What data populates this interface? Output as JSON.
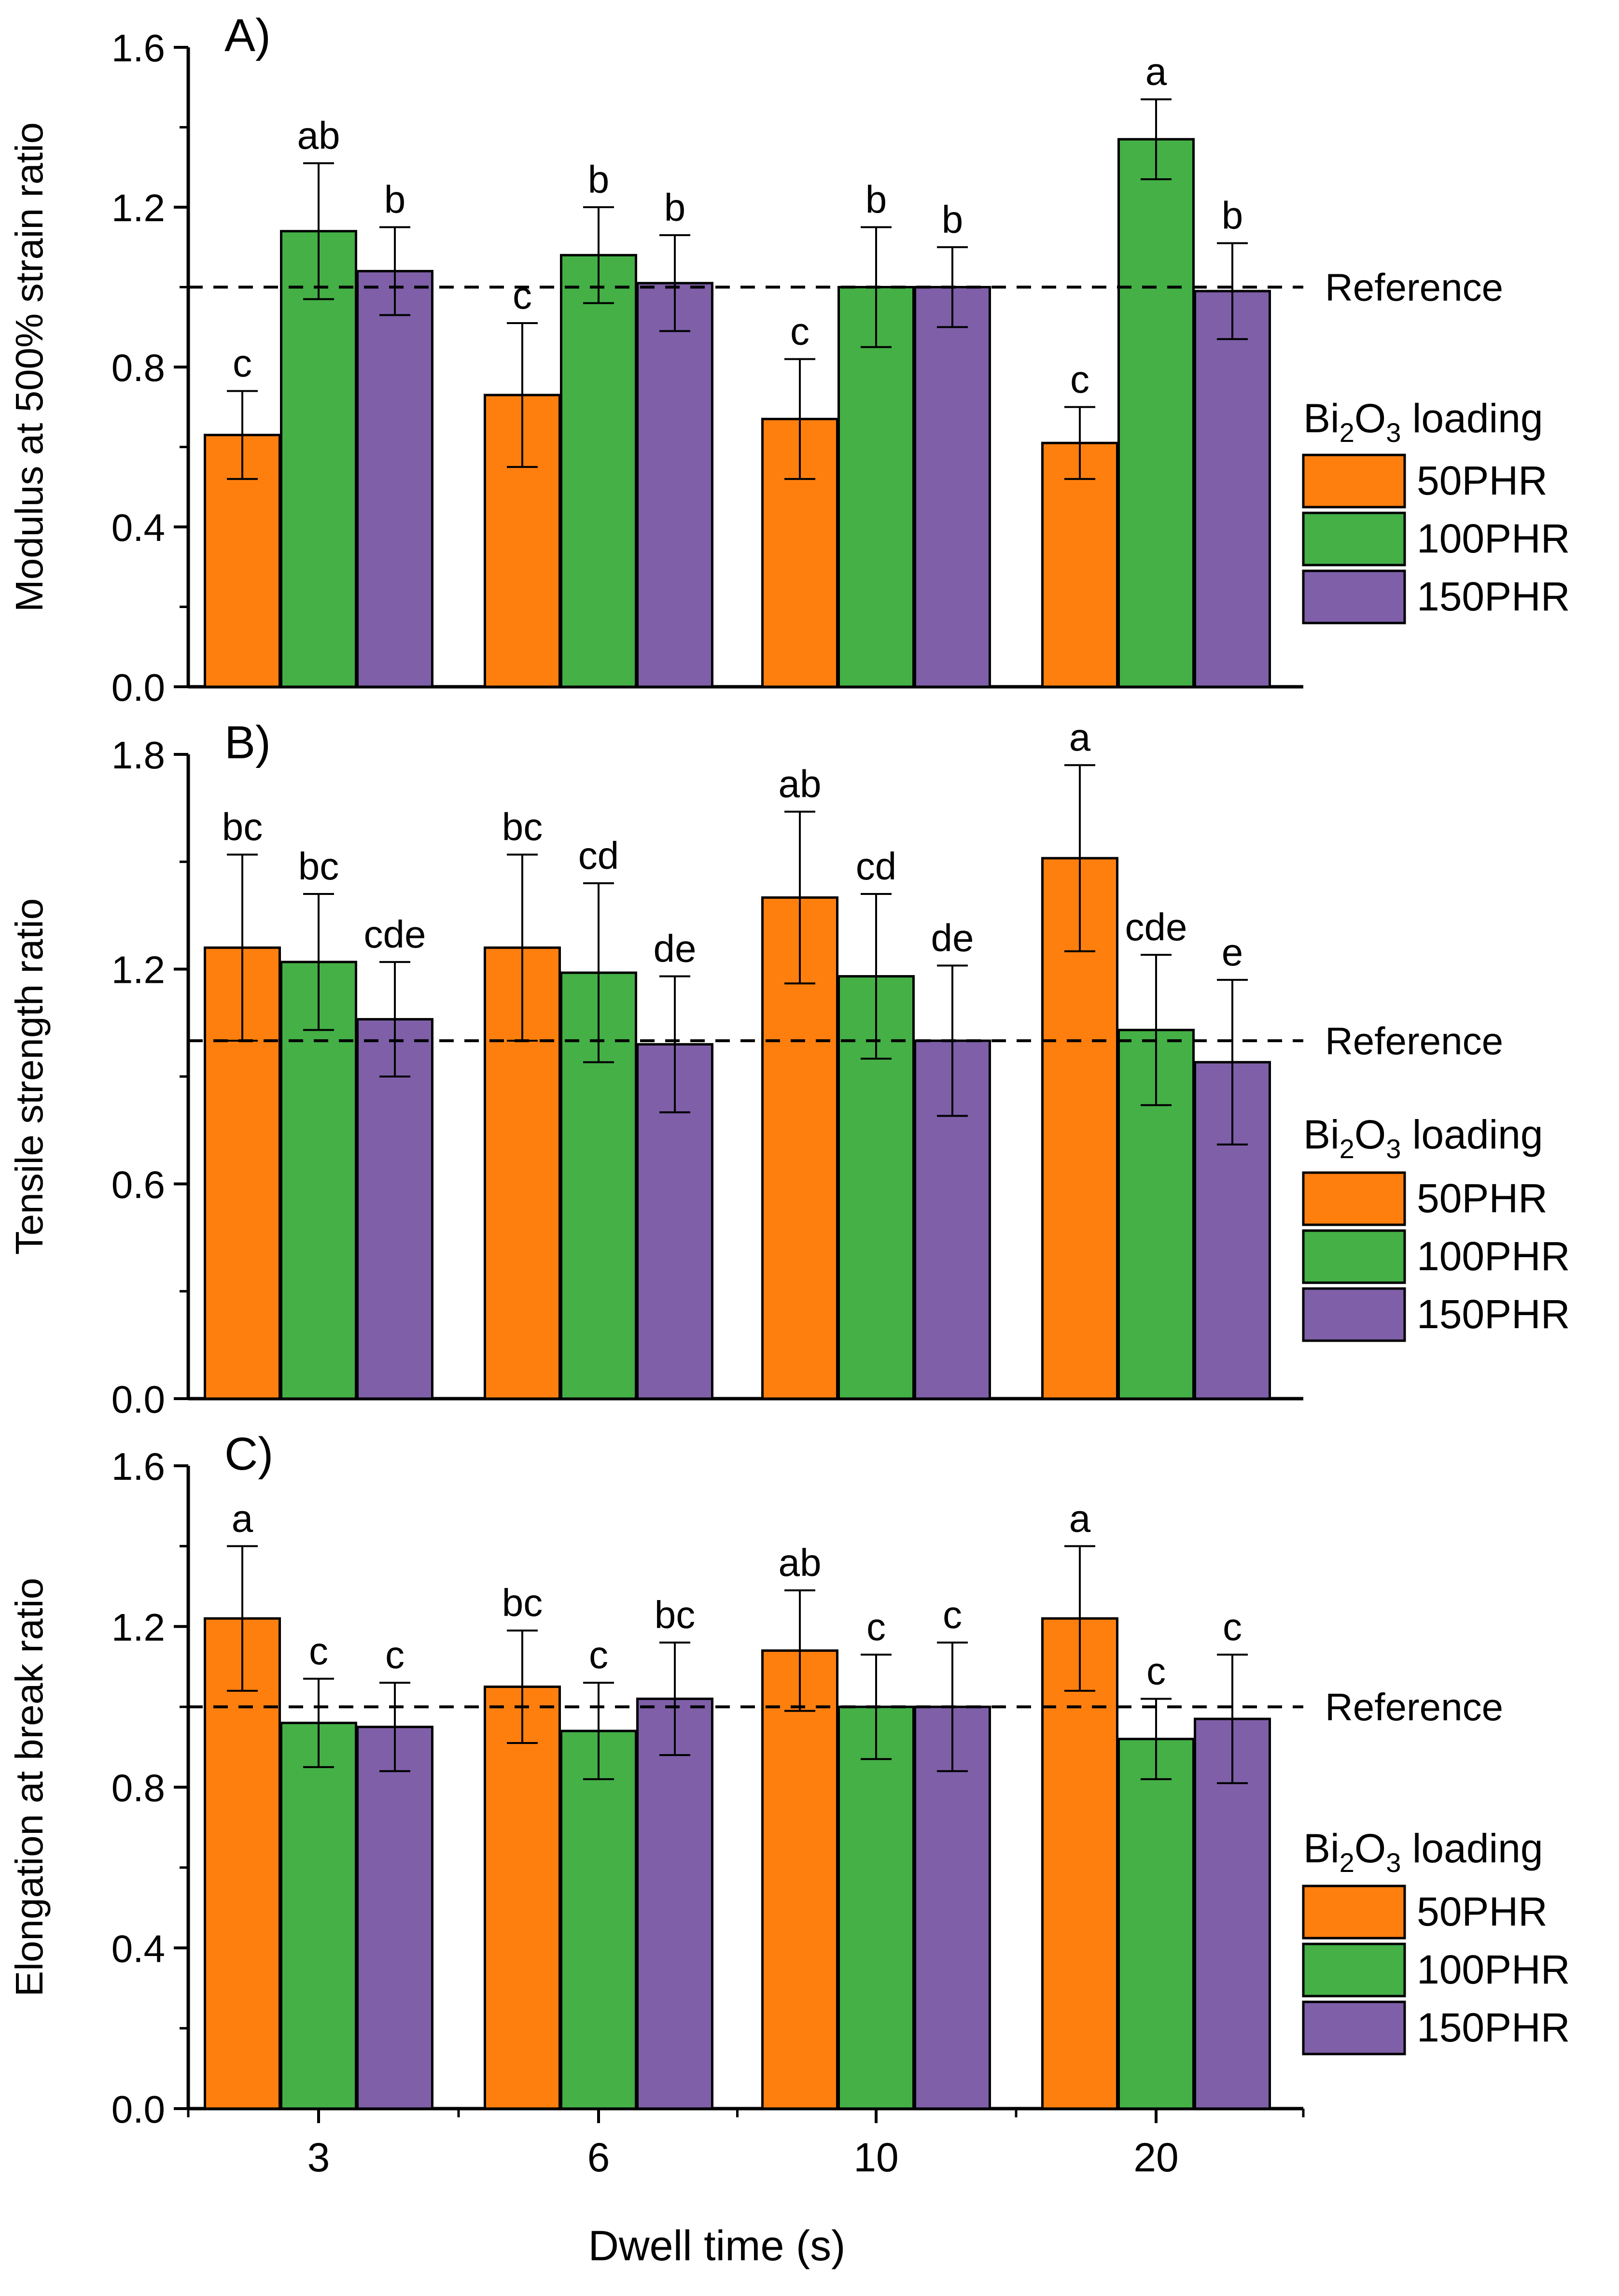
{
  "figure": {
    "xlabel": "Dwell time (s)",
    "legend_title_prefix": "Bi",
    "legend_title_sub1": "2",
    "legend_title_mid": "O",
    "legend_title_sub2": "3",
    "legend_title_suffix": " loading",
    "reference_label": "Reference",
    "colors": {
      "50PHR": "#FF7F0E",
      "100PHR": "#44B046",
      "150PHR": "#7E5FA8"
    }
  },
  "chart_data": [
    {
      "type": "bar",
      "title": "A)",
      "xlabel": "Dwell time (s)",
      "ylabel": "Modulus at 500% strain ratio",
      "ylim": [
        0,
        1.6
      ],
      "yticks": [
        "0.0",
        "0.4",
        "0.8",
        "1.2",
        "1.6"
      ],
      "categories": [
        "3",
        "6",
        "10",
        "20"
      ],
      "reference": 1.0,
      "legend": "right",
      "series": [
        {
          "name": "50PHR",
          "values": [
            0.63,
            0.73,
            0.67,
            0.61
          ],
          "errors": [
            0.11,
            0.18,
            0.15,
            0.09
          ],
          "letters": [
            "c",
            "c",
            "c",
            "c"
          ]
        },
        {
          "name": "100PHR",
          "values": [
            1.14,
            1.08,
            1.0,
            1.37
          ],
          "errors": [
            0.17,
            0.12,
            0.15,
            0.1
          ],
          "letters": [
            "ab",
            "b",
            "b",
            "a"
          ]
        },
        {
          "name": "150PHR",
          "values": [
            1.04,
            1.01,
            1.0,
            0.99
          ],
          "errors": [
            0.11,
            0.12,
            0.1,
            0.12
          ],
          "letters": [
            "b",
            "b",
            "b",
            "b"
          ]
        }
      ]
    },
    {
      "type": "bar",
      "title": "B)",
      "xlabel": "Dwell time (s)",
      "ylabel": "Tensile strength ratio",
      "ylim": [
        0,
        1.8
      ],
      "yticks": [
        "0.0",
        "0.6",
        "1.2",
        "1.8"
      ],
      "categories": [
        "3",
        "6",
        "10",
        "20"
      ],
      "reference": 1.0,
      "legend": "right",
      "series": [
        {
          "name": "50PHR",
          "values": [
            1.26,
            1.26,
            1.4,
            1.51
          ],
          "errors": [
            0.26,
            0.26,
            0.24,
            0.26
          ],
          "letters": [
            "bc",
            "bc",
            "ab",
            "a"
          ]
        },
        {
          "name": "100PHR",
          "values": [
            1.22,
            1.19,
            1.18,
            1.03
          ],
          "errors": [
            0.19,
            0.25,
            0.23,
            0.21
          ],
          "letters": [
            "bc",
            "cd",
            "cd",
            "cde"
          ]
        },
        {
          "name": "150PHR",
          "values": [
            1.06,
            0.99,
            1.0,
            0.94
          ],
          "errors": [
            0.16,
            0.19,
            0.21,
            0.23
          ],
          "letters": [
            "cde",
            "de",
            "de",
            "e"
          ]
        }
      ]
    },
    {
      "type": "bar",
      "title": "C)",
      "xlabel": "Dwell time (s)",
      "ylabel": "Elongation at break ratio",
      "ylim": [
        0,
        1.6
      ],
      "yticks": [
        "0.0",
        "0.4",
        "0.8",
        "1.2",
        "1.6"
      ],
      "categories": [
        "3",
        "6",
        "10",
        "20"
      ],
      "reference": 1.0,
      "legend": "right",
      "series": [
        {
          "name": "50PHR",
          "values": [
            1.22,
            1.05,
            1.14,
            1.22
          ],
          "errors": [
            0.18,
            0.14,
            0.15,
            0.18
          ],
          "letters": [
            "a",
            "bc",
            "ab",
            "a"
          ]
        },
        {
          "name": "100PHR",
          "values": [
            0.96,
            0.94,
            1.0,
            0.92
          ],
          "errors": [
            0.11,
            0.12,
            0.13,
            0.1
          ],
          "letters": [
            "c",
            "c",
            "c",
            "c"
          ]
        },
        {
          "name": "150PHR",
          "values": [
            0.95,
            1.02,
            1.0,
            0.97
          ],
          "errors": [
            0.11,
            0.14,
            0.16,
            0.16
          ],
          "letters": [
            "c",
            "bc",
            "c",
            "c"
          ]
        }
      ]
    }
  ]
}
